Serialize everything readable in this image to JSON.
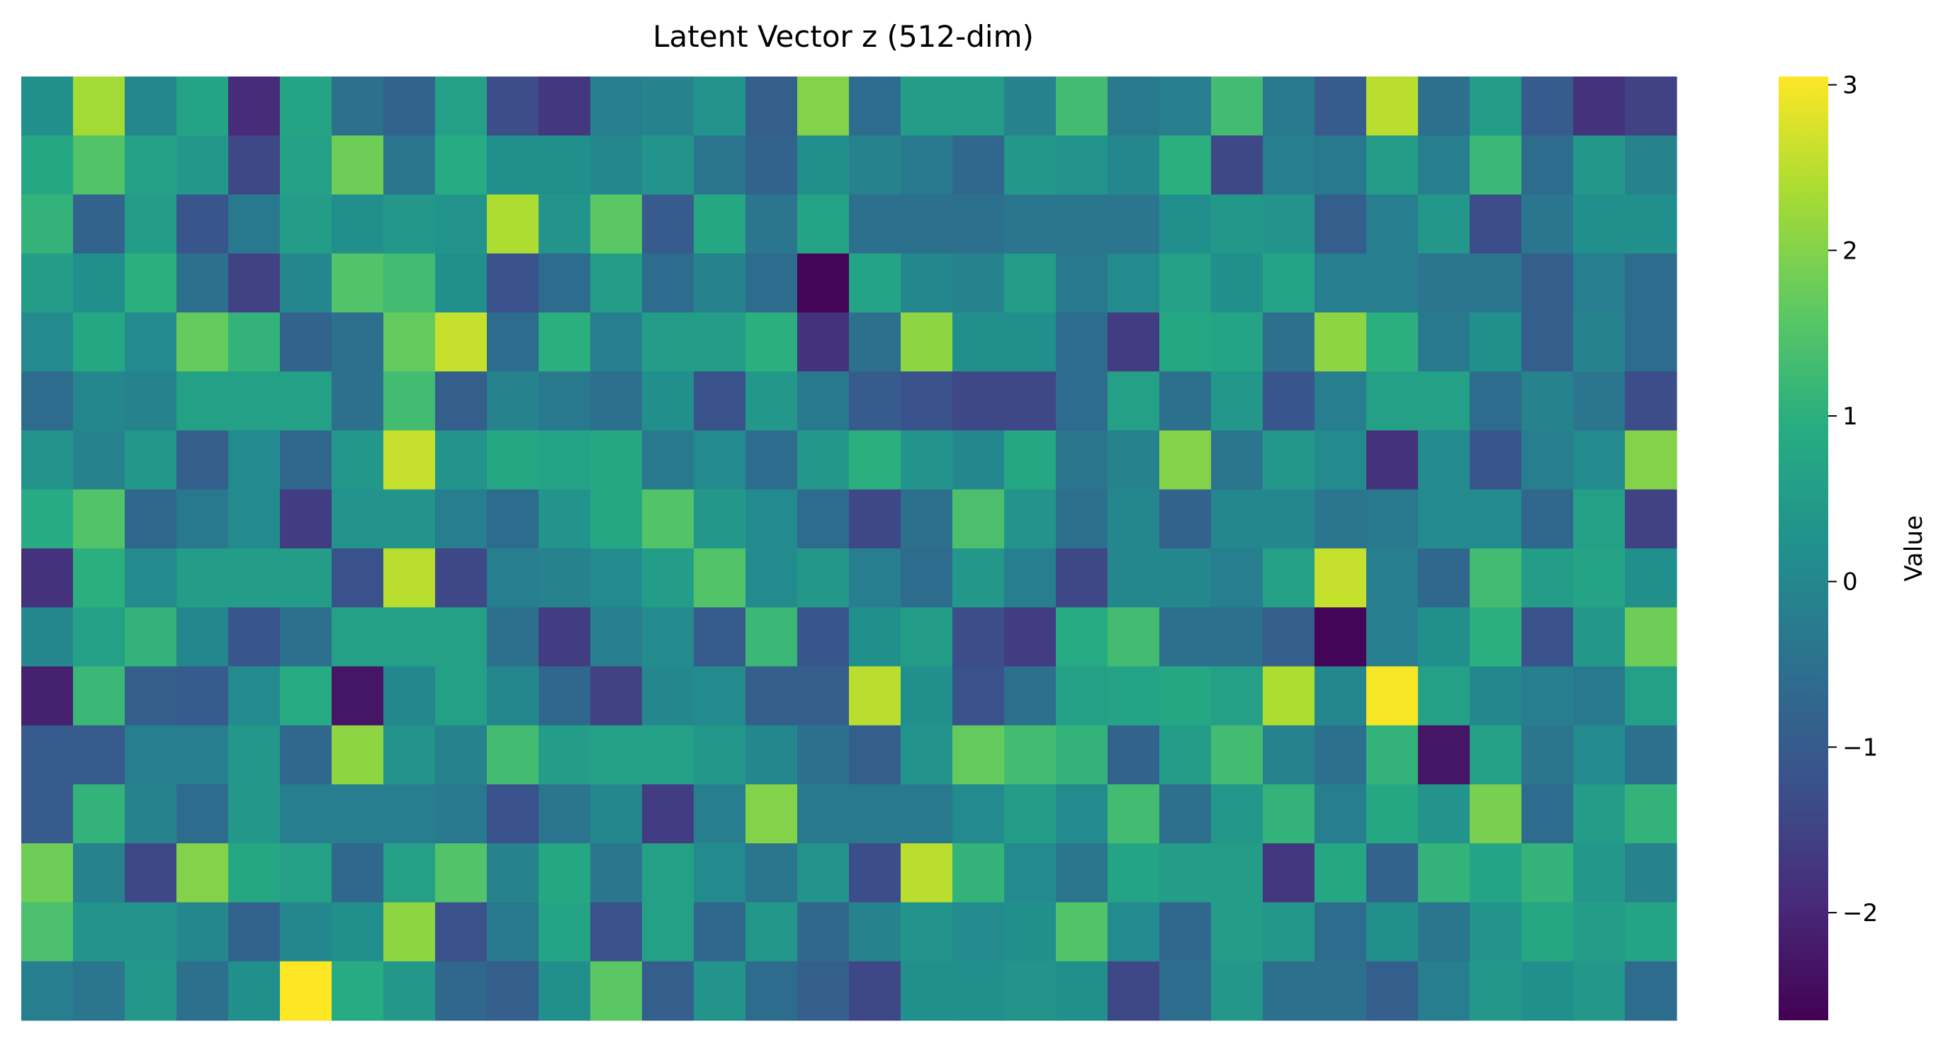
{
  "chart_data": {
    "type": "heatmap",
    "title": "Latent Vector z (512-dim)",
    "rows": 16,
    "cols": 32,
    "colormap": "viridis",
    "vmin": -2.65,
    "vmax": 3.05,
    "colorbar": {
      "label": "Value",
      "ticks": [
        3,
        2,
        1,
        0,
        -1,
        -2
      ],
      "tick_labels": [
        "3",
        "2",
        "1",
        "0",
        "−1",
        "−2"
      ]
    },
    "grid": false,
    "values": [
      [
        0.2,
        2.3,
        0.0,
        0.7,
        -1.9,
        0.7,
        -0.5,
        -0.8,
        0.6,
        -1.3,
        -1.7,
        -0.2,
        -0.1,
        0.3,
        -0.9,
        2.0,
        -0.6,
        0.5,
        0.5,
        -0.1,
        1.3,
        -0.3,
        -0.2,
        1.3,
        -0.3,
        -1.0,
        2.5,
        -0.5,
        0.5,
        -1.0,
        -1.8,
        -1.5
      ],
      [
        0.8,
        1.5,
        0.6,
        0.4,
        -1.4,
        0.6,
        1.8,
        -0.4,
        0.9,
        0.2,
        0.2,
        0.0,
        0.3,
        -0.4,
        -0.8,
        0.2,
        -0.1,
        -0.3,
        -0.7,
        0.4,
        0.3,
        0.0,
        1.0,
        -1.4,
        -0.2,
        -0.3,
        0.5,
        -0.2,
        1.2,
        -0.6,
        0.4,
        -0.1
      ],
      [
        1.1,
        -0.8,
        0.5,
        -1.1,
        -0.3,
        0.5,
        0.2,
        0.4,
        0.3,
        2.4,
        0.3,
        1.6,
        -1.0,
        0.8,
        -0.4,
        0.7,
        -0.5,
        -0.5,
        -0.5,
        -0.4,
        -0.4,
        -0.4,
        0.2,
        0.4,
        0.3,
        -0.9,
        -0.2,
        0.4,
        -1.3,
        -0.4,
        0.2,
        0.2
      ],
      [
        0.5,
        0.2,
        1.0,
        -0.5,
        -1.5,
        0.0,
        1.5,
        1.3,
        0.2,
        -1.2,
        -0.6,
        0.5,
        -0.6,
        -0.1,
        -0.6,
        -2.6,
        0.7,
        0.0,
        -0.1,
        0.5,
        -0.3,
        0.1,
        0.6,
        0.2,
        0.7,
        -0.2,
        -0.2,
        -0.4,
        -0.4,
        -0.9,
        -0.2,
        -0.6
      ],
      [
        0.1,
        0.8,
        0.1,
        1.7,
        1.1,
        -0.8,
        -0.5,
        1.7,
        2.6,
        -0.6,
        1.0,
        -0.2,
        0.5,
        0.5,
        1.0,
        -1.8,
        -0.5,
        2.1,
        0.2,
        0.2,
        -0.6,
        -1.6,
        0.8,
        0.7,
        -0.5,
        2.1,
        1.0,
        -0.3,
        0.2,
        -0.9,
        -0.1,
        -0.6
      ],
      [
        -0.6,
        0.0,
        -0.1,
        0.6,
        0.6,
        0.6,
        -0.5,
        1.3,
        -0.9,
        -0.1,
        -0.3,
        -0.5,
        0.2,
        -1.2,
        0.4,
        -0.3,
        -1.0,
        -1.2,
        -1.4,
        -1.4,
        -0.6,
        0.6,
        -0.5,
        0.4,
        -1.1,
        -0.2,
        0.6,
        0.6,
        -0.6,
        -0.1,
        -0.4,
        -1.3
      ],
      [
        0.3,
        -0.1,
        0.4,
        -0.9,
        0.1,
        -0.7,
        0.4,
        2.6,
        0.3,
        0.8,
        0.7,
        0.8,
        -0.3,
        0.1,
        -0.6,
        0.4,
        1.0,
        0.3,
        0.0,
        0.8,
        -0.4,
        -0.1,
        2.0,
        -0.4,
        0.4,
        0.1,
        -1.8,
        0.1,
        -1.1,
        -0.2,
        0.1,
        2.0
      ],
      [
        0.9,
        1.5,
        -0.7,
        -0.3,
        0.1,
        -1.6,
        0.3,
        0.3,
        -0.2,
        -0.6,
        0.3,
        0.8,
        1.5,
        0.4,
        0.1,
        -0.6,
        -1.4,
        -0.5,
        1.4,
        0.3,
        -0.5,
        0.0,
        -0.8,
        0.0,
        0.0,
        -0.4,
        -0.3,
        0.1,
        0.1,
        -0.7,
        0.6,
        -1.5
      ],
      [
        -1.8,
        1.0,
        0.1,
        0.5,
        0.5,
        0.5,
        -1.2,
        2.5,
        -1.4,
        -0.2,
        -0.1,
        0.1,
        0.5,
        1.5,
        0.1,
        0.4,
        -0.2,
        -0.6,
        0.4,
        -0.2,
        -1.4,
        0.0,
        0.0,
        -0.2,
        0.6,
        2.6,
        -0.2,
        -0.7,
        1.3,
        0.5,
        0.7,
        0.2
      ],
      [
        0.0,
        0.6,
        1.1,
        0.0,
        -1.1,
        -0.5,
        0.6,
        0.6,
        0.6,
        -0.5,
        -1.6,
        -0.2,
        0.1,
        -1.0,
        1.2,
        -1.1,
        0.2,
        0.5,
        -1.3,
        -1.6,
        0.9,
        1.3,
        -0.5,
        -0.5,
        -0.9,
        -2.6,
        -0.2,
        0.2,
        1.0,
        -1.2,
        0.4,
        1.8
      ],
      [
        -2.1,
        1.2,
        -0.9,
        -1.0,
        0.1,
        0.9,
        -2.3,
        0.0,
        0.6,
        0.0,
        -0.7,
        -1.5,
        0.0,
        0.1,
        -0.9,
        -0.9,
        2.5,
        0.2,
        -1.2,
        -0.5,
        0.6,
        0.7,
        0.8,
        0.6,
        2.4,
        0.0,
        3.0,
        0.6,
        0.0,
        -0.2,
        -0.3,
        0.6
      ],
      [
        -1.0,
        -1.0,
        -0.2,
        -0.2,
        0.4,
        -0.7,
        2.1,
        0.3,
        -0.1,
        1.3,
        0.5,
        0.6,
        0.6,
        0.4,
        0.0,
        -0.5,
        -0.9,
        0.3,
        1.7,
        1.3,
        1.1,
        -0.8,
        0.5,
        1.3,
        -0.1,
        -0.5,
        1.1,
        -2.3,
        0.6,
        -0.4,
        0.1,
        -0.5
      ],
      [
        -1.0,
        1.1,
        -0.1,
        -0.6,
        0.4,
        -0.2,
        -0.2,
        -0.2,
        -0.3,
        -1.2,
        -0.4,
        0.0,
        -1.6,
        -0.2,
        2.0,
        -0.3,
        -0.3,
        -0.3,
        0.1,
        0.5,
        0.1,
        1.3,
        -0.5,
        0.4,
        1.1,
        -0.2,
        0.8,
        0.3,
        1.9,
        -0.6,
        0.5,
        1.1
      ],
      [
        1.8,
        -0.1,
        -1.4,
        2.0,
        0.8,
        0.6,
        -0.7,
        0.6,
        1.5,
        -0.1,
        0.8,
        -0.4,
        0.6,
        0.1,
        -0.4,
        0.3,
        -1.3,
        2.5,
        1.1,
        0.1,
        -0.4,
        0.7,
        0.5,
        0.5,
        -1.7,
        0.8,
        -0.8,
        1.1,
        0.7,
        1.1,
        0.4,
        -0.1
      ],
      [
        1.4,
        0.3,
        0.3,
        0.0,
        -0.8,
        0.0,
        0.2,
        2.1,
        -1.2,
        -0.3,
        0.7,
        -1.2,
        0.6,
        -0.7,
        0.4,
        -0.7,
        -0.1,
        0.3,
        0.1,
        0.2,
        1.5,
        0.1,
        -0.7,
        0.5,
        0.4,
        -0.6,
        0.2,
        -0.4,
        0.3,
        0.8,
        0.5,
        0.7
      ],
      [
        -0.2,
        -0.4,
        0.4,
        -0.5,
        0.2,
        3.1,
        0.9,
        0.4,
        -0.7,
        -0.9,
        0.2,
        1.6,
        -0.9,
        0.3,
        -0.6,
        -0.9,
        -1.4,
        0.2,
        0.2,
        0.3,
        0.2,
        -1.4,
        -0.6,
        0.4,
        -0.5,
        -0.5,
        -0.9,
        -0.2,
        0.4,
        0.2,
        0.4,
        -0.6
      ]
    ]
  }
}
